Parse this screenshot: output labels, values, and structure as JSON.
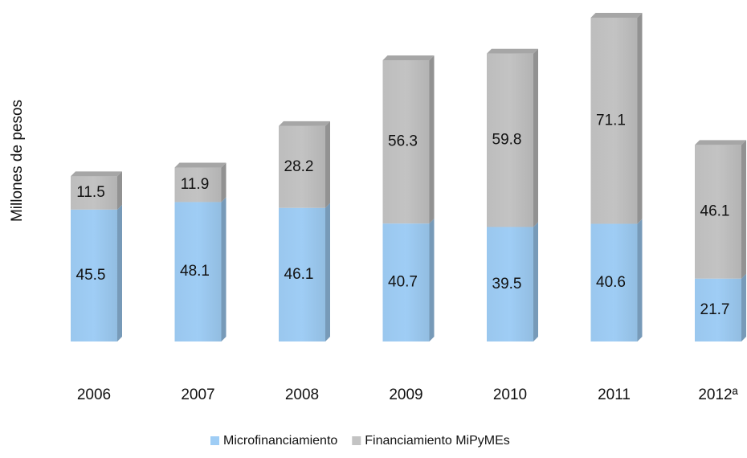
{
  "chart_data": {
    "type": "stacked_bar",
    "y_label": "Millones de pesos",
    "categories": [
      "2006",
      "2007",
      "2008",
      "2009",
      "2010",
      "2011",
      "2012ª"
    ],
    "series": [
      {
        "name": "Microfinanciamiento",
        "color": "#9fcdf5",
        "values": [
          45.5,
          48.1,
          46.1,
          40.7,
          39.5,
          40.6,
          21.7
        ]
      },
      {
        "name": "Financiamiento MiPyMEs",
        "color": "#c3c3c3",
        "values": [
          11.5,
          11.9,
          28.2,
          56.3,
          59.8,
          71.1,
          46.1
        ]
      }
    ],
    "legend": "bottom"
  }
}
